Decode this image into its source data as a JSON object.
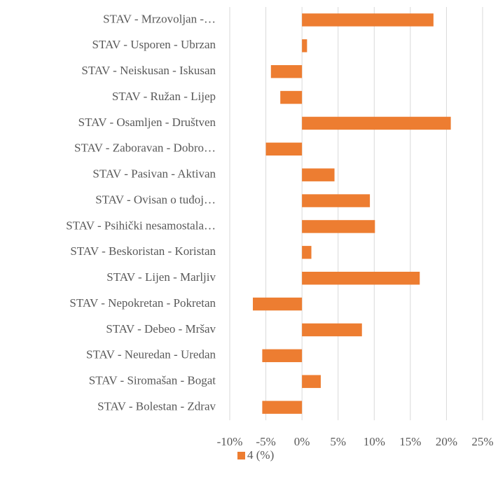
{
  "chart_data": {
    "type": "hbar",
    "categories": [
      "STAV - Mrzovoljan -…",
      "STAV - Usporen - Ubrzan",
      "STAV - Neiskusan - Iskusan",
      "STAV - Ružan - Lijep",
      "STAV - Osamljen - Društven",
      "STAV - Zaboravan - Dobro…",
      "STAV - Pasivan - Aktivan",
      "STAV - Ovisan o tuđoj…",
      "STAV - Psihički nesamostala…",
      "STAV - Beskoristan - Koristan",
      "STAV - Lijen - Marljiv",
      "STAV - Nepokretan - Pokretan",
      "STAV - Debeo - Mršav",
      "STAV - Neuredan - Uredan",
      "STAV - Siromašan - Bogat",
      "STAV - Bolestan - Zdrav"
    ],
    "series": [
      {
        "name": "4 (%)",
        "color": "#ed7d31",
        "values": [
          18.2,
          0.7,
          -4.3,
          -3.0,
          20.6,
          -5.0,
          4.5,
          9.4,
          10.1,
          1.3,
          16.3,
          -6.8,
          8.3,
          -5.5,
          2.6,
          -5.5
        ]
      }
    ],
    "xlim": [
      -10,
      25
    ],
    "xticks": [
      {
        "value": -10,
        "label": "-10%"
      },
      {
        "value": -5,
        "label": "-5%"
      },
      {
        "value": 0,
        "label": "0%"
      },
      {
        "value": 5,
        "label": "5%"
      },
      {
        "value": 10,
        "label": "10%"
      },
      {
        "value": 15,
        "label": "15%"
      },
      {
        "value": 20,
        "label": "20%"
      },
      {
        "value": 25,
        "label": "25%"
      }
    ],
    "grid": true,
    "legend": "bottom"
  }
}
